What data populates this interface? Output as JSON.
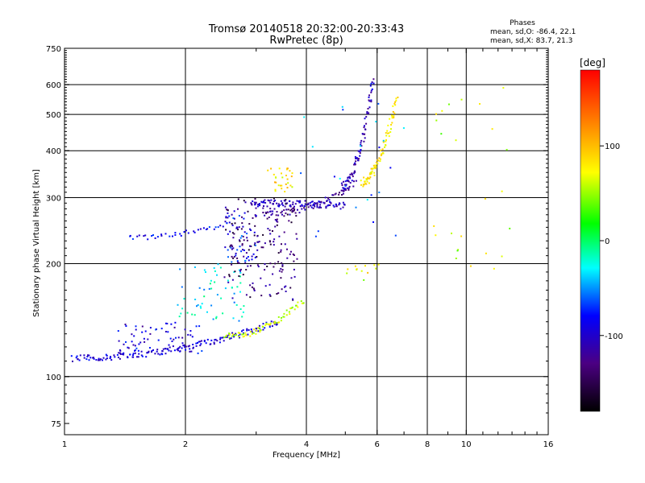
{
  "chart_data": {
    "type": "scatter",
    "title": "Tromsø 20140518 20:32:00-20:33:43",
    "subtitle": "RwPretec (8p)",
    "stats": {
      "heading": "Phases",
      "line_o": "mean, sd,O: -86.4, 22.1",
      "line_x": "mean, sd,X: 83.7, 21.3"
    },
    "xlabel": "Frequency [MHz]",
    "ylabel": "Stationary phase Virtual Height [km]",
    "xscale": "log",
    "yscale": "log",
    "xlim": [
      1,
      16
    ],
    "ylim": [
      70,
      750
    ],
    "xticks": [
      1,
      2,
      4,
      6,
      8,
      10,
      16
    ],
    "yticks": [
      75,
      100,
      200,
      300,
      400,
      500,
      600,
      750
    ],
    "x_gridlines": [
      2,
      4,
      6,
      8,
      10
    ],
    "y_gridlines": [
      100,
      200,
      300,
      400,
      500,
      600
    ],
    "colorbar": {
      "label": "[deg]",
      "range": [
        -180,
        180
      ],
      "ticks": [
        -100,
        0,
        100
      ],
      "colormap": [
        "#000000",
        "#4b0082",
        "#0000ff",
        "#00ffff",
        "#00ff00",
        "#ffff00",
        "#ff7f00",
        "#ff0000"
      ]
    },
    "traces": [
      {
        "x0": 1.05,
        "x1": 3.4,
        "h0": 112,
        "h1": 140,
        "phase": -95,
        "n": 170,
        "spread": 4
      },
      {
        "x0": 2.5,
        "x1": 3.95,
        "h0": 128,
        "h1": 160,
        "phase": 60,
        "n": 70,
        "spread": 4
      },
      {
        "x0": 1.45,
        "x1": 2.6,
        "h0": 235,
        "h1": 258,
        "phase": -85,
        "n": 40,
        "spread": 3
      },
      {
        "x0": 2.9,
        "x1": 5.0,
        "h0": 290,
        "h1": 285,
        "phase": -105,
        "n": 110,
        "spread": 4
      },
      {
        "x0": 3.1,
        "x1": 5.3,
        "h0": 270,
        "h1": 330,
        "phase": -120,
        "n": 70,
        "spread": 4
      },
      {
        "x0": 4.9,
        "x1": 5.85,
        "h0": 320,
        "h1": 620,
        "phase": -110,
        "n": 90,
        "spread": 6
      },
      {
        "x0": 5.5,
        "x1": 6.7,
        "h0": 330,
        "h1": 560,
        "phase": 80,
        "n": 90,
        "spread": 6
      }
    ],
    "clouds": [
      {
        "xmin": 1.35,
        "xmax": 2.2,
        "hmin": 115,
        "hmax": 140,
        "phase": -95,
        "n": 70
      },
      {
        "xmin": 1.9,
        "xmax": 2.8,
        "hmin": 140,
        "hmax": 200,
        "phase": -30,
        "n": 60
      },
      {
        "xmin": 2.5,
        "xmax": 3.8,
        "hmin": 160,
        "hmax": 300,
        "phase": -135,
        "n": 180
      },
      {
        "xmin": 2.5,
        "xmax": 3.0,
        "hmin": 200,
        "hmax": 280,
        "phase": -80,
        "n": 50
      },
      {
        "xmin": 3.2,
        "xmax": 3.7,
        "hmin": 310,
        "hmax": 360,
        "phase": 80,
        "n": 30
      },
      {
        "xmin": 5.0,
        "xmax": 6.1,
        "hmin": 180,
        "hmax": 200,
        "phase": 70,
        "n": 12
      },
      {
        "xmin": 8.2,
        "xmax": 13.5,
        "hmin": 180,
        "hmax": 620,
        "phase": 60,
        "n": 25
      },
      {
        "xmin": 3.5,
        "xmax": 7.0,
        "hmin": 230,
        "hmax": 620,
        "phase": -60,
        "n": 25
      }
    ]
  }
}
